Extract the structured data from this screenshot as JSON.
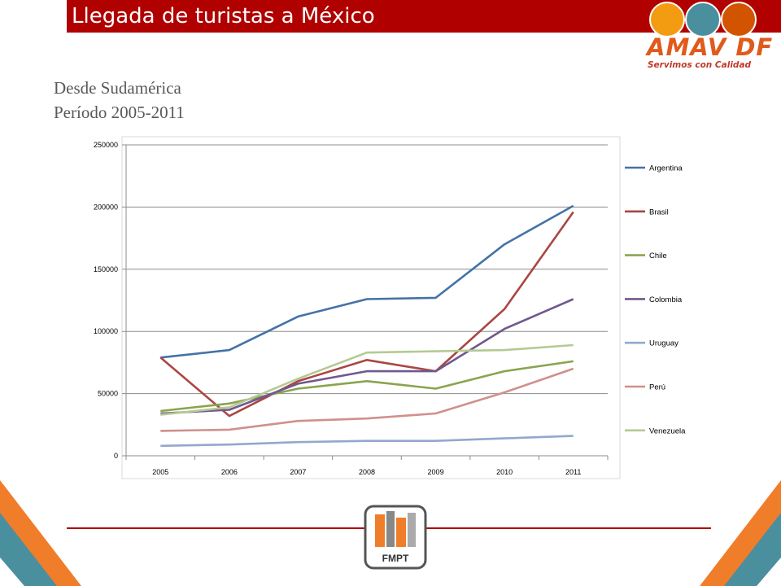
{
  "slide": {
    "title": "Llegada de turistas a México",
    "subtitle_line1": "Desde Sudamérica",
    "subtitle_line2": "Período 2005-2011"
  },
  "logos": {
    "top_right_text": "AMAV DF",
    "top_right_tagline": "Servimos con Calidad",
    "bottom_center_text": "FMPT"
  },
  "colors": {
    "title_bar": "#b00000",
    "accent_orange": "#e05a1c",
    "accent_teal": "#4a8f9e"
  },
  "chart_data": {
    "type": "line",
    "categories": [
      "2005",
      "2006",
      "2007",
      "2008",
      "2009",
      "2010",
      "2011"
    ],
    "ylim": [
      0,
      250000
    ],
    "yticks": [
      "0",
      "50000",
      "100000",
      "150000",
      "200000",
      "250000"
    ],
    "grid": true,
    "legend_position": "right",
    "series": [
      {
        "name": "Argentina",
        "color": "#4572a7",
        "values": [
          79000,
          85000,
          112000,
          126000,
          127000,
          170000,
          201000
        ]
      },
      {
        "name": "Brasil",
        "color": "#aa4643",
        "values": [
          79000,
          32000,
          60000,
          77000,
          68000,
          118000,
          196000
        ]
      },
      {
        "name": "Chile",
        "color": "#89a54e",
        "values": [
          36000,
          42000,
          54000,
          60000,
          54000,
          68000,
          76000
        ]
      },
      {
        "name": "Colombia",
        "color": "#71588f",
        "values": [
          34000,
          37000,
          58000,
          68000,
          68000,
          102000,
          126000
        ]
      },
      {
        "name": "Uruguay",
        "color": "#92a8cd",
        "values": [
          8000,
          9000,
          11000,
          12000,
          12000,
          14000,
          16000
        ]
      },
      {
        "name": "Perú",
        "color": "#d0908c",
        "values": [
          20000,
          21000,
          28000,
          30000,
          34000,
          51000,
          70000
        ]
      },
      {
        "name": "Venezuela",
        "color": "#b5ca92",
        "values": [
          33000,
          39000,
          62000,
          83000,
          84000,
          85000,
          89000
        ]
      }
    ]
  }
}
